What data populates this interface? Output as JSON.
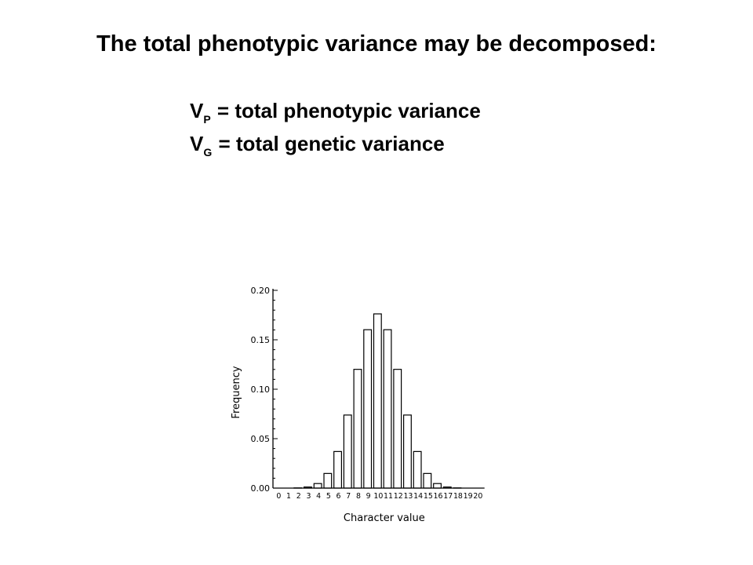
{
  "slide": {
    "title": "The total phenotypic variance may be decomposed:",
    "definitions": [
      {
        "symbol": "V",
        "subscript": "P",
        "text": "= total phenotypic variance"
      },
      {
        "symbol": "V",
        "subscript": "G",
        "text": "= total genetic variance"
      }
    ]
  },
  "chart_data": {
    "type": "bar",
    "xlabel": "Character value",
    "ylabel": "Frequency",
    "categories": [
      "0",
      "1",
      "2",
      "3",
      "4",
      "5",
      "6",
      "7",
      "8",
      "9",
      "10",
      "11",
      "12",
      "13",
      "14",
      "15",
      "16",
      "17",
      "18",
      "19",
      "20"
    ],
    "values": [
      0.0,
      0.0,
      0.0002,
      0.0011,
      0.0046,
      0.0148,
      0.037,
      0.0739,
      0.1201,
      0.1602,
      0.1762,
      0.1602,
      0.1201,
      0.0739,
      0.037,
      0.0148,
      0.0046,
      0.0011,
      0.0002,
      0.0,
      0.0
    ],
    "ylim": [
      0,
      0.2
    ],
    "yticks": [
      "0.00",
      "0.05",
      "0.10",
      "0.15",
      "0.20"
    ],
    "grid": false,
    "legend": false
  }
}
